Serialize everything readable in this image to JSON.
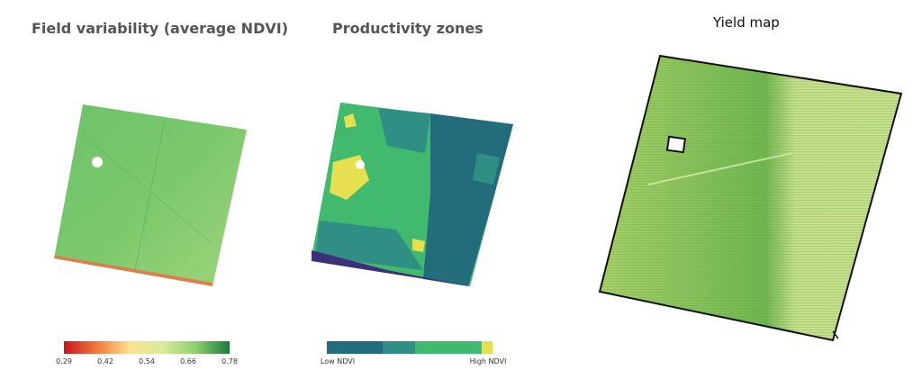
{
  "panels": {
    "variability": {
      "title": "Field variability (average NDVI)",
      "legend_ticks": [
        "0.29",
        "0.42",
        "0.54",
        "0.66",
        "0.78"
      ],
      "legend_colors": [
        "#c8141b",
        "#f07b3c",
        "#fbe28e",
        "#b7dd78",
        "#5fb45a",
        "#1e7b3b"
      ]
    },
    "zones": {
      "title": "Productivity zones",
      "legend_low": "Low NDVI",
      "legend_high": "High NDVI",
      "zone_colors": [
        "#236c7c",
        "#2f8f84",
        "#41b96e",
        "#e6e051"
      ]
    },
    "yield": {
      "title": "Yield map"
    }
  }
}
